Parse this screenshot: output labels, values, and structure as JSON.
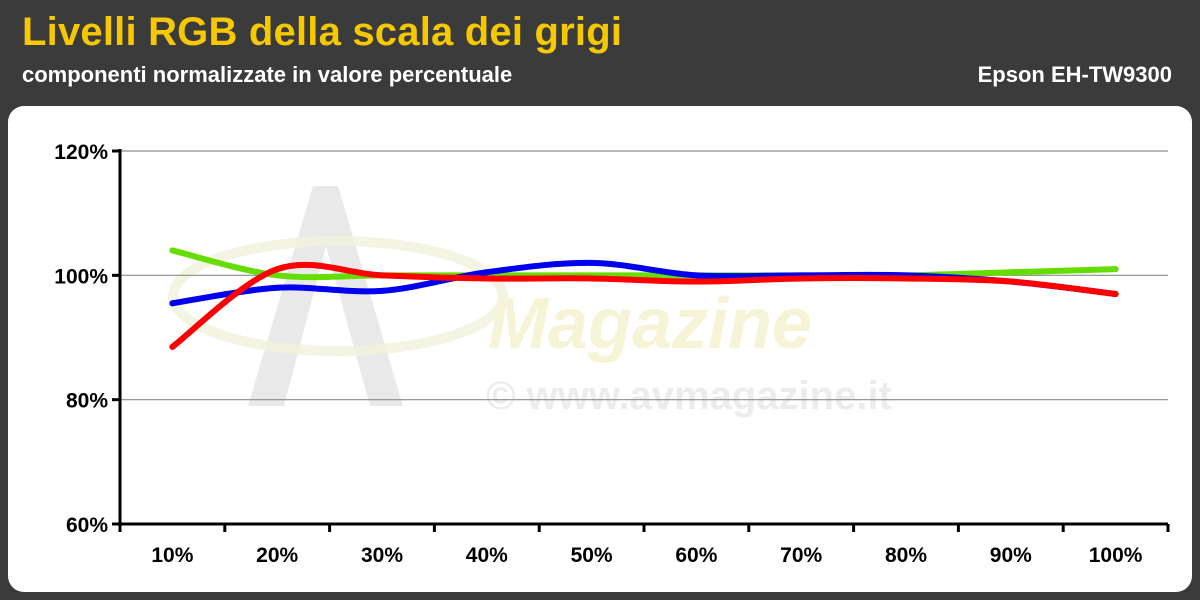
{
  "header": {
    "title": "Livelli RGB della scala dei grigi",
    "subtitle": "componenti normalizzate in valore percentuale",
    "model": "Epson EH-TW9300"
  },
  "watermark": {
    "brand": "Magazine",
    "url": "© www.avmagazine.it"
  },
  "colors": {
    "background": "#3b3b3b",
    "title": "#f5c800",
    "red": "#ff0000",
    "green": "#66dd00",
    "blue": "#0000ee"
  },
  "chart_data": {
    "type": "line",
    "categories": [
      "10%",
      "20%",
      "30%",
      "40%",
      "50%",
      "60%",
      "70%",
      "80%",
      "90%",
      "100%"
    ],
    "ylim": [
      60,
      120
    ],
    "yticks": [
      60,
      80,
      100,
      120
    ],
    "ytick_labels": [
      "60%",
      "80%",
      "100%",
      "120%"
    ],
    "grid": true,
    "legend": "none",
    "series": [
      {
        "color": "#66dd00",
        "values": [
          104,
          100,
          100,
          100,
          100,
          100,
          100,
          100,
          100.5,
          101
        ]
      },
      {
        "color": "#0000ee",
        "values": [
          95.5,
          98,
          97.5,
          100.5,
          102,
          100,
          100,
          100,
          99,
          97
        ]
      },
      {
        "color": "#ff0000",
        "values": [
          88.5,
          101,
          100,
          99.5,
          99.5,
          99,
          99.5,
          99.5,
          99,
          97
        ]
      }
    ]
  }
}
